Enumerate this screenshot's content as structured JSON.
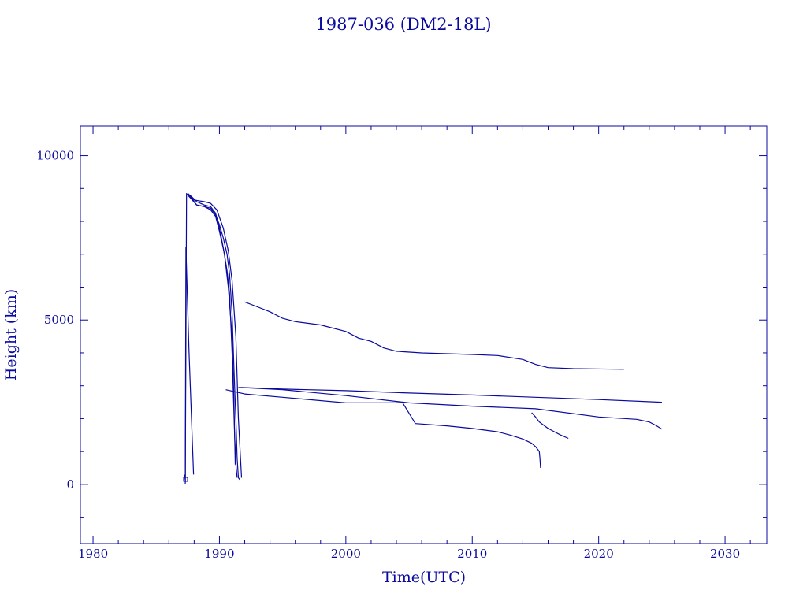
{
  "colors": {
    "ink": "#0a0aa0",
    "background": "#ffffff"
  },
  "chart_data": {
    "type": "line",
    "title": "1987-036 (DM2-18L)",
    "xlabel": "Time(UTC)",
    "ylabel": "Height (km)",
    "xlim": [
      1979,
      2033.3
    ],
    "ylim": [
      -1800,
      10900
    ],
    "x_ticks": [
      1980,
      1990,
      2000,
      2010,
      2020,
      2030
    ],
    "x_tick_labels": [
      "1980",
      "1990",
      "2000",
      "2010",
      "2020",
      "2030"
    ],
    "y_ticks": [
      0,
      5000,
      10000
    ],
    "y_tick_labels": [
      "0",
      "5000",
      "10000"
    ],
    "grid": false,
    "legend": "none",
    "series": [
      {
        "x": [
          1987.3,
          1987.4,
          1987.45,
          1987.5,
          1987.8,
          1988.2,
          1988.8,
          1989.3,
          1989.7,
          1990.0,
          1990.3,
          1990.6,
          1990.8,
          1991.0,
          1991.15,
          1991.3,
          1991.4,
          1991.5,
          1991.6,
          1991.65
        ],
        "y": [
          0,
          8850,
          8820,
          8800,
          8700,
          8500,
          8450,
          8400,
          8200,
          7900,
          7500,
          7000,
          6400,
          5200,
          3500,
          2000,
          800,
          200,
          150,
          150
        ]
      },
      {
        "x": [
          1987.5,
          1987.8,
          1988.2,
          1988.8,
          1989.3,
          1989.7,
          1990.0,
          1990.3,
          1990.6,
          1990.8,
          1991.0,
          1991.2,
          1991.3,
          1991.4
        ],
        "y": [
          8850,
          8750,
          8600,
          8500,
          8450,
          8250,
          7800,
          7200,
          6500,
          5800,
          4000,
          1500,
          600,
          200
        ]
      },
      {
        "x": [
          1987.5,
          1988.2,
          1988.8,
          1989.3,
          1989.7,
          1990.0,
          1990.4,
          1990.7,
          1991.0,
          1991.15,
          1991.25
        ],
        "y": [
          8800,
          8500,
          8450,
          8350,
          8150,
          7700,
          7000,
          6000,
          4500,
          2500,
          600
        ]
      },
      {
        "x": [
          1987.5,
          1988.0,
          1988.8,
          1989.3,
          1989.8,
          1990.3,
          1990.7,
          1991.0,
          1991.3,
          1991.5,
          1991.75
        ],
        "y": [
          8850,
          8650,
          8600,
          8550,
          8350,
          7800,
          7100,
          6200,
          4500,
          2000,
          200
        ]
      },
      {
        "x": [
          1987.25,
          1987.3,
          1987.35,
          1987.6,
          1987.95
        ],
        "y": [
          300,
          100,
          7200,
          4000,
          300
        ]
      },
      {
        "x": [
          1992.0,
          1993.0,
          1994.0,
          1995.0,
          1996.0,
          1998.0,
          2000.0,
          2001.0,
          2002.0,
          2003.0,
          2004.0,
          2006.0,
          2010.0,
          2012.0,
          2014.0,
          2015.0,
          2016.0,
          2018.0,
          2022.0
        ],
        "y": [
          5550,
          5400,
          5250,
          5050,
          4950,
          4850,
          4650,
          4450,
          4350,
          4150,
          4050,
          4000,
          3950,
          3920,
          3800,
          3650,
          3550,
          3520,
          3500
        ]
      },
      {
        "x": [
          1991.7,
          1995.0,
          2000.0,
          2005.0,
          2010.0,
          2015.0,
          2020.0,
          2025.0
        ],
        "y": [
          2950,
          2900,
          2850,
          2780,
          2720,
          2650,
          2580,
          2500
        ]
      },
      {
        "x": [
          1991.5,
          1995.0,
          2000.0,
          2005.0,
          2010.0,
          2015.0,
          2020.0,
          2023.0,
          2024.0,
          2024.5,
          2025.0
        ],
        "y": [
          2950,
          2880,
          2700,
          2480,
          2380,
          2300,
          2050,
          1980,
          1900,
          1800,
          1680
        ]
      },
      {
        "x": [
          1990.5,
          1992.0,
          1995.0,
          2000.0,
          2004.5,
          2005.5,
          2008.0,
          2010.0,
          2012.0,
          2013.0,
          2014.0,
          2014.7,
          2015.0,
          2015.3,
          2015.35,
          2015.4
        ],
        "y": [
          2880,
          2750,
          2650,
          2480,
          2480,
          1850,
          1780,
          1700,
          1600,
          1500,
          1380,
          1250,
          1150,
          1000,
          800,
          500
        ]
      },
      {
        "x": [
          2014.7,
          2015.0,
          2015.3,
          2016.0,
          2016.5,
          2017.0,
          2017.6
        ],
        "y": [
          2180,
          2050,
          1900,
          1700,
          1600,
          1500,
          1400
        ]
      }
    ]
  }
}
